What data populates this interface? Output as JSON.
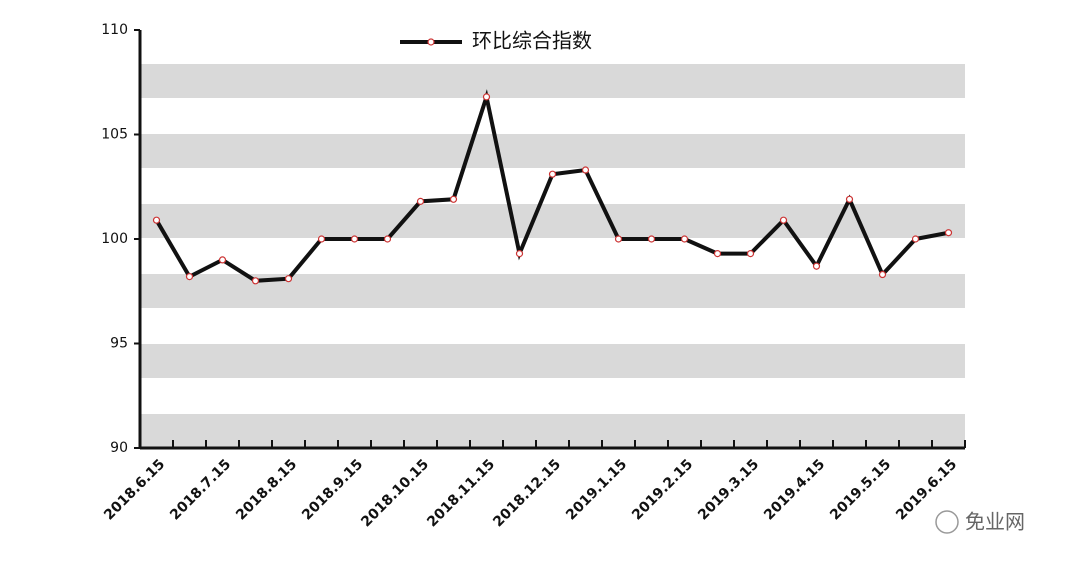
{
  "chart_data": {
    "type": "line",
    "legend": "环比综合指数",
    "categories": [
      "2018.6.15",
      null,
      "2018.7.15",
      null,
      "2018.8.15",
      null,
      "2018.9.15",
      null,
      "2018.10.15",
      null,
      "2018.11.15",
      null,
      "2018.12.15",
      null,
      "2019.1.15",
      null,
      "2019.2.15",
      null,
      "2019.3.15",
      null,
      "2019.4.15",
      null,
      "2019.5.15",
      null,
      "2019.6.15"
    ],
    "series": [
      {
        "name": "环比综合指数",
        "color": "#111111",
        "values": [
          100.9,
          98.2,
          99.0,
          98.0,
          98.1,
          100.0,
          100.0,
          100.0,
          101.8,
          101.9,
          106.8,
          99.3,
          103.1,
          103.3,
          100.0,
          100.0,
          100.0,
          99.3,
          99.3,
          100.9,
          98.7,
          101.9,
          98.3,
          100.0,
          100.3
        ]
      }
    ],
    "ylim": [
      90,
      110
    ],
    "yticks": [
      90,
      95,
      100,
      105,
      110
    ],
    "grid": true,
    "legend_position": "top",
    "watermark": "免业网"
  }
}
